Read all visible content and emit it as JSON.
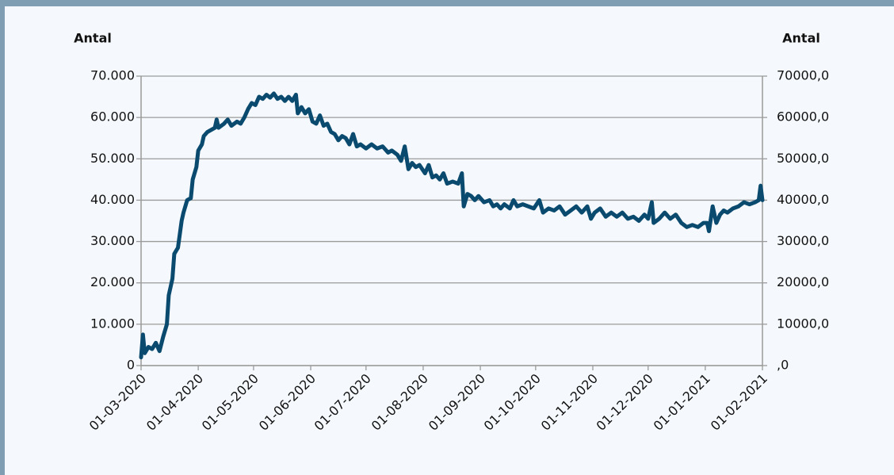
{
  "chart_data": {
    "type": "line",
    "y_label": "Antal",
    "y2_label": "Antal",
    "x": [
      "01-03-2020",
      "02-03-2020",
      "03-03-2020",
      "05-03-2020",
      "07-03-2020",
      "09-03-2020",
      "11-03-2020",
      "13-03-2020",
      "15-03-2020",
      "16-03-2020",
      "18-03-2020",
      "19-03-2020",
      "21-03-2020",
      "23-03-2020",
      "24-03-2020",
      "26-03-2020",
      "28-03-2020",
      "29-03-2020",
      "31-03-2020",
      "01-04-2020",
      "03-04-2020",
      "04-04-2020",
      "06-04-2020",
      "08-04-2020",
      "10-04-2020",
      "11-04-2020",
      "12-04-2020",
      "15-04-2020",
      "17-04-2020",
      "19-04-2020",
      "22-04-2020",
      "24-04-2020",
      "26-04-2020",
      "28-04-2020",
      "30-04-2020",
      "02-05-2020",
      "04-05-2020",
      "06-05-2020",
      "08-05-2020",
      "10-05-2020",
      "12-05-2020",
      "14-05-2020",
      "16-05-2020",
      "18-05-2020",
      "20-05-2020",
      "22-05-2020",
      "24-05-2020",
      "25-05-2020",
      "27-05-2020",
      "29-05-2020",
      "31-05-2020",
      "02-06-2020",
      "04-06-2020",
      "06-06-2020",
      "08-06-2020",
      "10-06-2020",
      "12-06-2020",
      "14-06-2020",
      "16-06-2020",
      "18-06-2020",
      "20-06-2020",
      "22-06-2020",
      "24-06-2020",
      "26-06-2020",
      "28-06-2020",
      "01-07-2020",
      "04-07-2020",
      "07-07-2020",
      "10-07-2020",
      "13-07-2020",
      "15-07-2020",
      "18-07-2020",
      "20-07-2020",
      "22-07-2020",
      "24-07-2020",
      "26-07-2020",
      "28-07-2020",
      "30-07-2020",
      "02-08-2020",
      "04-08-2020",
      "06-08-2020",
      "08-08-2020",
      "10-08-2020",
      "12-08-2020",
      "14-08-2020",
      "17-08-2020",
      "20-08-2020",
      "22-08-2020",
      "23-08-2020",
      "25-08-2020",
      "27-08-2020",
      "29-08-2020",
      "31-08-2020",
      "03-09-2020",
      "06-09-2020",
      "08-09-2020",
      "10-09-2020",
      "12-09-2020",
      "14-09-2020",
      "17-09-2020",
      "19-09-2020",
      "21-09-2020",
      "24-09-2020",
      "27-09-2020",
      "30-09-2020",
      "03-10-2020",
      "05-10-2020",
      "08-10-2020",
      "11-10-2020",
      "14-10-2020",
      "17-10-2020",
      "20-10-2020",
      "23-10-2020",
      "26-10-2020",
      "29-10-2020",
      "31-10-2020",
      "02-11-2020",
      "05-11-2020",
      "08-11-2020",
      "11-11-2020",
      "14-11-2020",
      "17-11-2020",
      "20-11-2020",
      "23-11-2020",
      "26-11-2020",
      "29-11-2020",
      "01-12-2020",
      "03-12-2020",
      "04-12-2020",
      "07-12-2020",
      "10-12-2020",
      "13-12-2020",
      "16-12-2020",
      "19-12-2020",
      "22-12-2020",
      "25-12-2020",
      "28-12-2020",
      "31-12-2020",
      "02-01-2021",
      "03-01-2021",
      "05-01-2021",
      "07-01-2021",
      "09-01-2021",
      "11-01-2021",
      "13-01-2021",
      "16-01-2021",
      "19-01-2021",
      "22-01-2021",
      "25-01-2021",
      "28-01-2021",
      "30-01-2021",
      "31-01-2021",
      "01-02-2021"
    ],
    "series": [
      {
        "color": "#0b4a6f",
        "values": [
          2000,
          7500,
          3000,
          4500,
          4000,
          5500,
          3500,
          7000,
          10000,
          17000,
          21000,
          27000,
          28500,
          35000,
          37000,
          40000,
          40500,
          45000,
          48000,
          52000,
          53500,
          55500,
          56500,
          57000,
          57500,
          59500,
          57500,
          58500,
          59500,
          58000,
          59000,
          58500,
          60000,
          62000,
          63500,
          63000,
          65000,
          64500,
          65500,
          64800,
          65800,
          64500,
          65000,
          64000,
          65000,
          64000,
          65500,
          61000,
          62500,
          61000,
          62000,
          59000,
          58500,
          60500,
          58000,
          58500,
          56500,
          56000,
          54500,
          55500,
          55000,
          53500,
          56000,
          53000,
          53500,
          52500,
          53500,
          52500,
          53000,
          51500,
          52000,
          51000,
          49500,
          53000,
          47500,
          49000,
          48000,
          48500,
          46500,
          48500,
          45500,
          46000,
          45000,
          46500,
          44000,
          44500,
          44000,
          46500,
          38500,
          41500,
          41000,
          40000,
          41000,
          39500,
          40000,
          38500,
          39000,
          38000,
          39000,
          38000,
          40000,
          38500,
          39000,
          38500,
          38000,
          40000,
          37000,
          38000,
          37500,
          38500,
          36500,
          37500,
          38500,
          37000,
          38500,
          35500,
          37000,
          38000,
          36000,
          37000,
          36000,
          37000,
          35500,
          36000,
          35000,
          36500,
          35500,
          39500,
          34500,
          35500,
          37000,
          35500,
          36500,
          34500,
          33500,
          34000,
          33500,
          34500,
          34500,
          32500,
          38500,
          34500,
          36500,
          37500,
          37000,
          38000,
          38500,
          39500,
          39000,
          39500,
          40000,
          43500,
          40000
        ]
      }
    ],
    "xlim": [
      "01-03-2020",
      "01-02-2021"
    ],
    "xticks": [
      "01-03-2020",
      "01-04-2020",
      "01-05-2020",
      "01-06-2020",
      "01-07-2020",
      "01-08-2020",
      "01-09-2020",
      "01-10-2020",
      "01-11-2020",
      "01-12-2020",
      "01-01-2021",
      "01-02-2021"
    ],
    "ylim": [
      0,
      70000
    ],
    "yticks": [
      0,
      {
        "value": 10000,
        "label": "10.000"
      },
      {
        "value": 20000,
        "label": "20.000"
      },
      {
        "value": 30000,
        "label": "30.000"
      },
      {
        "value": 40000,
        "label": "40.000"
      },
      {
        "value": 50000,
        "label": "50.000"
      },
      {
        "value": 60000,
        "label": "60.000"
      },
      {
        "value": 70000,
        "label": "70.000"
      }
    ],
    "y2lim": [
      0,
      70000
    ],
    "y2ticks": [
      {
        "value": 0,
        "label": ",0"
      },
      {
        "value": 10000,
        "label": "10000,0"
      },
      {
        "value": 20000,
        "label": "20000,0"
      },
      {
        "value": 30000,
        "label": "30000,0"
      },
      {
        "value": 40000,
        "label": "40000,0"
      },
      {
        "value": 50000,
        "label": "50000,0"
      },
      {
        "value": 60000,
        "label": "60000,0"
      },
      {
        "value": 70000,
        "label": "70000,0"
      }
    ],
    "grid": true
  }
}
